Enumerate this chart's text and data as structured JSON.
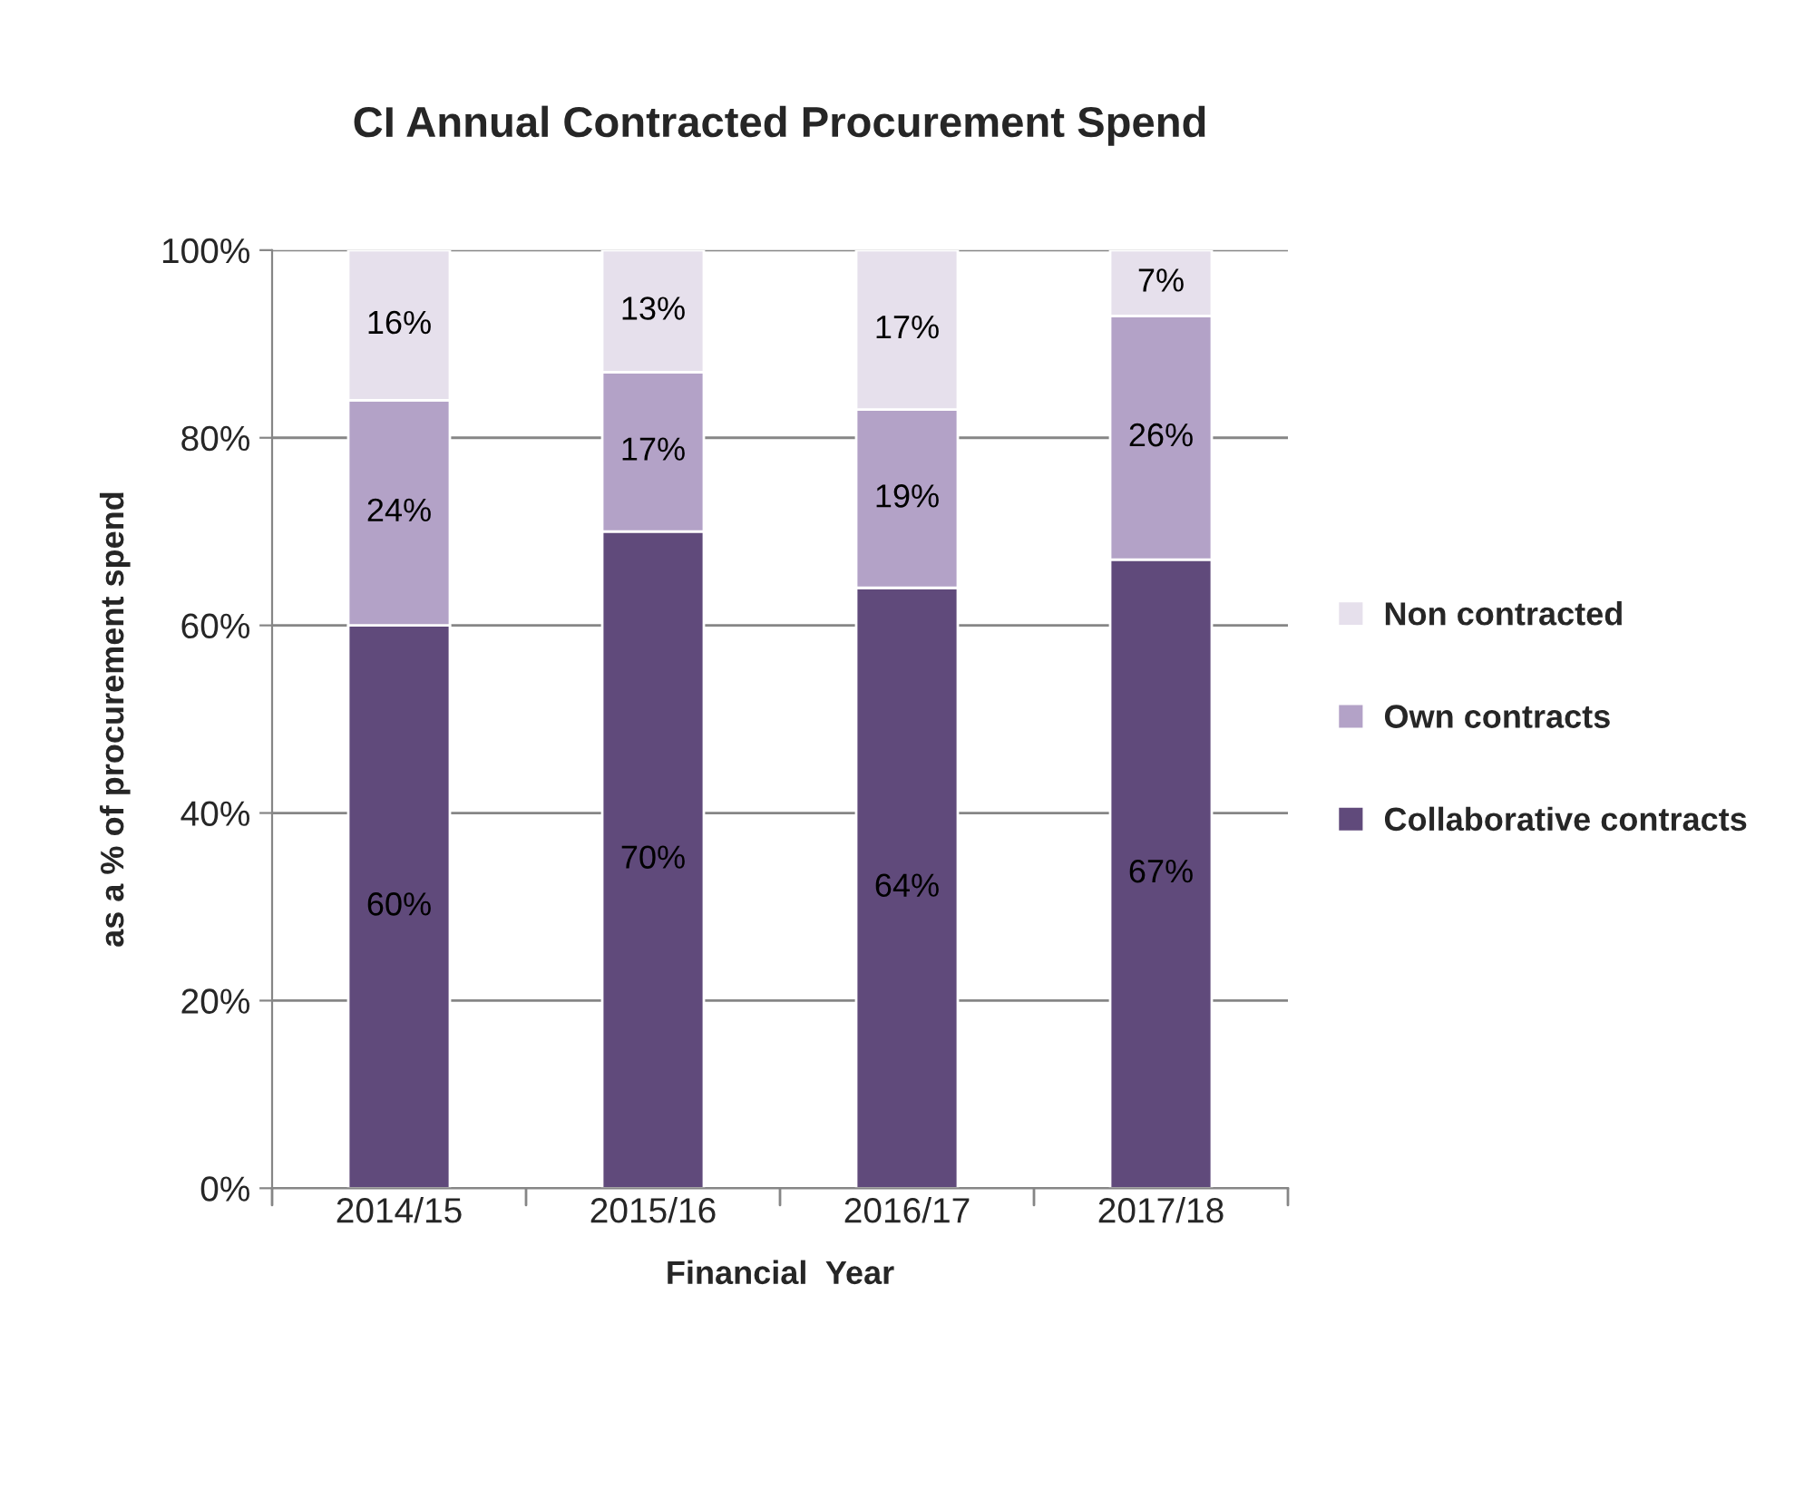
{
  "chart_data": {
    "type": "bar",
    "title": "CI Annual Contracted Procurement Spend",
    "xlabel": "Financial  Year",
    "ylabel": "as a % of procurement spend",
    "categories": [
      "2014/15",
      "2015/16",
      "2016/17",
      "2017/18"
    ],
    "stacked": true,
    "series": [
      {
        "name": "Collaborative contracts",
        "color": "#604a7b",
        "values": [
          60,
          70,
          64,
          67
        ],
        "value_labels": [
          "60%",
          "70%",
          "64%",
          "67%"
        ]
      },
      {
        "name": "Own contracts",
        "color": "#b3a2c7",
        "values": [
          24,
          17,
          19,
          26
        ],
        "value_labels": [
          "24%",
          "17%",
          "19%",
          "26%"
        ]
      },
      {
        "name": "Non contracted",
        "color": "#e6e0ec",
        "values": [
          16,
          13,
          17,
          7
        ],
        "value_labels": [
          "16%",
          "13%",
          "17%",
          "7%"
        ]
      }
    ],
    "ylim": [
      0,
      100
    ],
    "yticks": [
      {
        "value": 0,
        "label": "0%"
      },
      {
        "value": 20,
        "label": "20%"
      },
      {
        "value": 40,
        "label": "40%"
      },
      {
        "value": 60,
        "label": "60%"
      },
      {
        "value": 80,
        "label": "80%"
      },
      {
        "value": 100,
        "label": "100%"
      }
    ],
    "grid": "y",
    "legend": "right"
  }
}
